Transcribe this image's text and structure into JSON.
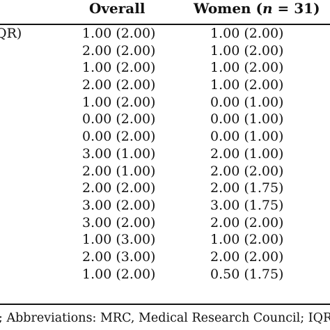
{
  "table": {
    "headers": {
      "overall": "Overall",
      "women_prefix": "Women (",
      "women_n": "n",
      "women_suffix": " = 31)"
    },
    "rows": [
      {
        "stub": "QR)",
        "overall": "1.00 (2.00)",
        "women": "1.00 (2.00)"
      },
      {
        "stub": ")",
        "overall": "2.00 (2.00)",
        "women": "1.00 (2.00)"
      },
      {
        "stub": "",
        "overall": "1.00 (2.00)",
        "women": "1.00 (2.00)"
      },
      {
        "stub": "",
        "overall": "2.00 (2.00)",
        "women": "1.00 (2.00)"
      },
      {
        "stub": "",
        "overall": "1.00 (2.00)",
        "women": "0.00 (1.00)"
      },
      {
        "stub": "",
        "overall": "0.00 (2.00)",
        "women": "0.00 (1.00)"
      },
      {
        "stub": "",
        "overall": "0.00 (2.00)",
        "women": "0.00 (1.00)"
      },
      {
        "stub": "",
        "overall": "3.00 (1.00)",
        "women": "2.00 (1.00)"
      },
      {
        "stub": ")",
        "overall": "2.00 (1.00)",
        "women": "2.00 (2.00)"
      },
      {
        "stub": "",
        "overall": "2.00 (2.00)",
        "women": "2.00 (1.75)"
      },
      {
        "stub": "",
        "overall": "3.00 (2.00)",
        "women": "3.00 (1.75)"
      },
      {
        "stub": "",
        "overall": "3.00 (2.00)",
        "women": "2.00 (2.00)"
      },
      {
        "stub": "",
        "overall": "1.00 (3.00)",
        "women": "1.00 (2.00)"
      },
      {
        "stub": "",
        "overall": "2.00 (3.00)",
        "women": "2.00 (2.00)"
      },
      {
        "stub": "",
        "overall": "1.00 (2.00)",
        "women": "0.50 (1.75)"
      }
    ],
    "footnote": "; Abbreviations: MRC, Medical Research Council; IQR"
  }
}
